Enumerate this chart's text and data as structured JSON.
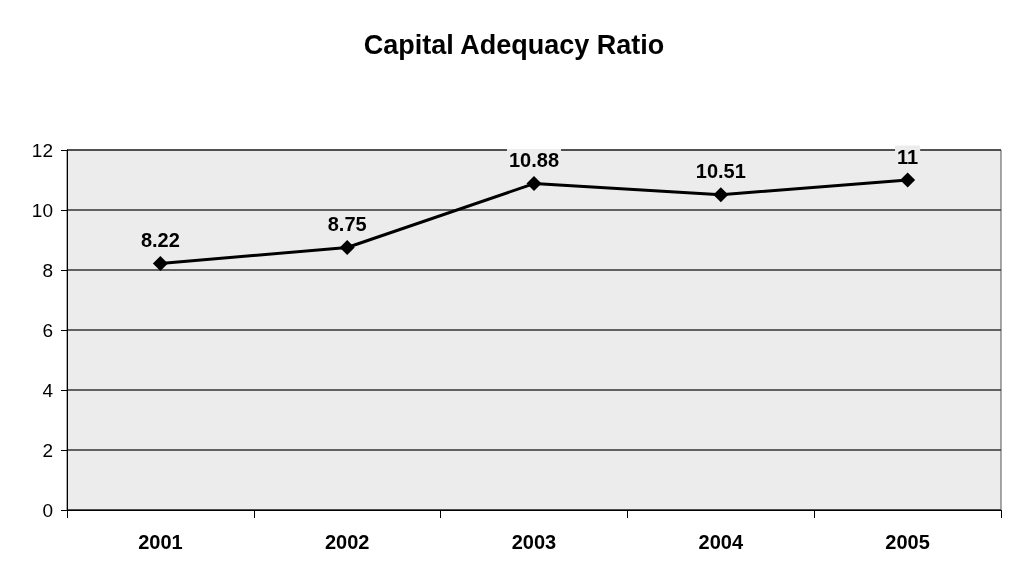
{
  "chart_data": {
    "type": "line",
    "title": "Capital Adequacy Ratio",
    "categories": [
      "2001",
      "2002",
      "2003",
      "2004",
      "2005"
    ],
    "values": [
      8.22,
      8.75,
      10.88,
      10.51,
      11
    ],
    "color": "#000000",
    "ylim": [
      0,
      12
    ],
    "yticks": [
      0,
      2,
      4,
      6,
      8,
      10,
      12
    ],
    "grid": "y",
    "marker": "diamond",
    "line_style": "solid",
    "data_labels": true
  }
}
